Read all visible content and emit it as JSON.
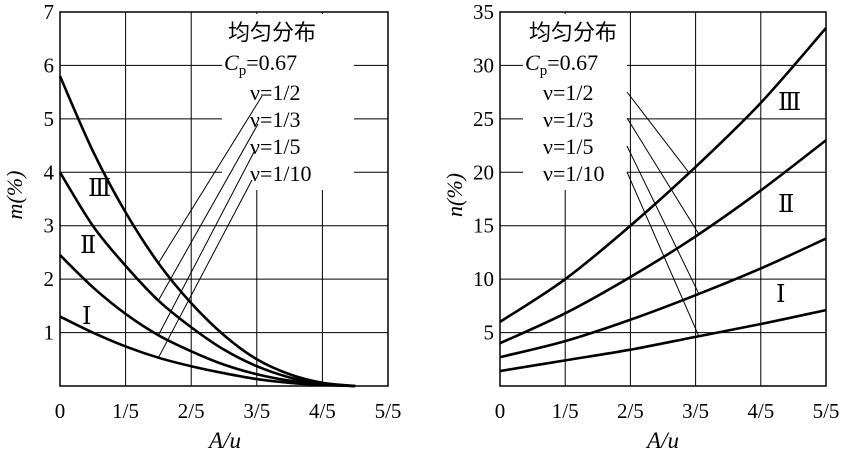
{
  "chart_data": [
    {
      "type": "line",
      "ylabel": "m(%)",
      "xlabel": "A/u",
      "x_ticks": [
        "0",
        "1/5",
        "2/5",
        "3/5",
        "4/5",
        "5/5"
      ],
      "y_ticks": [
        "1",
        "2",
        "3",
        "4",
        "5",
        "6",
        "7"
      ],
      "xlim": [
        0,
        1
      ],
      "ylim": [
        0,
        7
      ],
      "grid": true,
      "legend": {
        "title": "均匀分布",
        "param": "Cp=0.67",
        "param_main": "C",
        "param_sub": "p",
        "param_value": "=0.67",
        "entries": [
          "ν=1/2",
          "ν=1/3",
          "ν=1/5",
          "ν=1/10"
        ]
      },
      "curve_labels": [
        "Ⅲ",
        "Ⅱ",
        "Ⅰ"
      ],
      "series": [
        {
          "id": "v_1_2",
          "x": [
            0,
            0.1,
            0.2,
            0.3,
            0.4,
            0.5,
            0.6,
            0.7,
            0.8,
            0.9
          ],
          "values": [
            5.8,
            4.4,
            3.25,
            2.3,
            1.55,
            0.95,
            0.5,
            0.22,
            0.06,
            0
          ]
        },
        {
          "id": "v_1_3",
          "x": [
            0,
            0.1,
            0.2,
            0.3,
            0.4,
            0.5,
            0.6,
            0.7,
            0.8,
            0.9
          ],
          "values": [
            4.0,
            3.0,
            2.25,
            1.6,
            1.1,
            0.68,
            0.37,
            0.16,
            0.04,
            0
          ]
        },
        {
          "id": "v_1_5",
          "x": [
            0,
            0.1,
            0.2,
            0.3,
            0.4,
            0.5,
            0.6,
            0.7,
            0.8,
            0.9
          ],
          "values": [
            2.45,
            1.85,
            1.35,
            0.95,
            0.65,
            0.4,
            0.22,
            0.1,
            0.03,
            0
          ]
        },
        {
          "id": "v_1_10",
          "x": [
            0,
            0.1,
            0.2,
            0.3,
            0.4,
            0.5,
            0.6,
            0.7,
            0.8,
            0.9
          ],
          "values": [
            1.3,
            1.0,
            0.74,
            0.53,
            0.37,
            0.24,
            0.13,
            0.06,
            0.02,
            0
          ]
        }
      ]
    },
    {
      "type": "line",
      "ylabel": "n(%)",
      "xlabel": "A/u",
      "x_ticks": [
        "0",
        "1/5",
        "2/5",
        "3/5",
        "4/5",
        "5/5"
      ],
      "y_ticks": [
        "5",
        "10",
        "15",
        "20",
        "25",
        "30",
        "35"
      ],
      "xlim": [
        0,
        1
      ],
      "ylim": [
        0,
        35
      ],
      "grid": true,
      "legend": {
        "title": "均匀分布",
        "param": "Cp=0.67",
        "param_main": "C",
        "param_sub": "p",
        "param_value": "=0.67",
        "entries": [
          "ν=1/2",
          "ν=1/3",
          "ν=1/5",
          "ν=1/10"
        ]
      },
      "curve_labels": [
        "Ⅲ",
        "Ⅱ",
        "Ⅰ"
      ],
      "series": [
        {
          "id": "v_1_2",
          "x": [
            0,
            0.2,
            0.4,
            0.6,
            0.8,
            1.0
          ],
          "values": [
            6.0,
            10.0,
            15.0,
            20.5,
            26.5,
            33.5
          ]
        },
        {
          "id": "v_1_3",
          "x": [
            0,
            0.2,
            0.4,
            0.6,
            0.8,
            1.0
          ],
          "values": [
            4.0,
            6.8,
            10.2,
            14.0,
            18.3,
            23.0
          ]
        },
        {
          "id": "v_1_5",
          "x": [
            0,
            0.2,
            0.4,
            0.6,
            0.8,
            1.0
          ],
          "values": [
            2.7,
            4.2,
            6.2,
            8.5,
            11.0,
            13.8
          ]
        },
        {
          "id": "v_1_10",
          "x": [
            0,
            0.2,
            0.4,
            0.6,
            0.8,
            1.0
          ],
          "values": [
            1.4,
            2.4,
            3.4,
            4.6,
            5.8,
            7.1
          ]
        }
      ]
    }
  ]
}
